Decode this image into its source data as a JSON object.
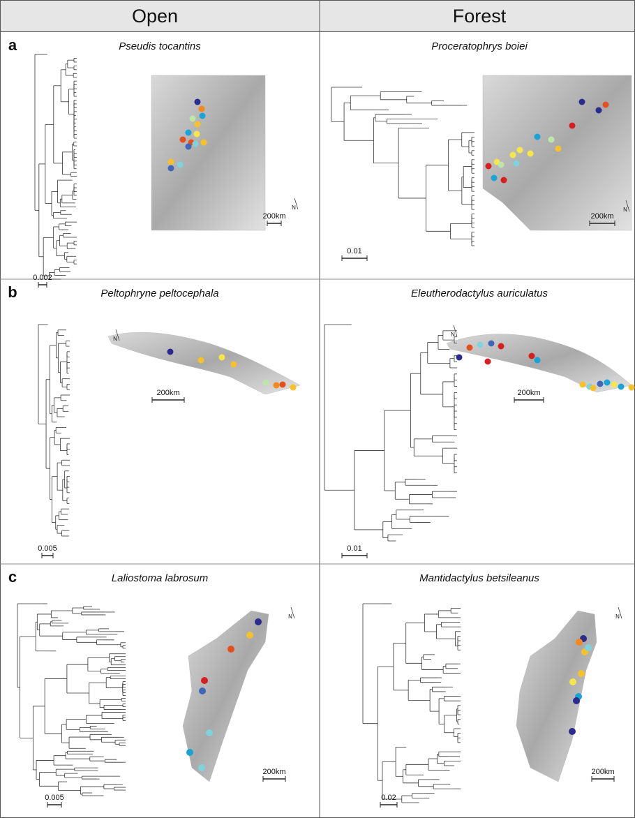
{
  "header": {
    "columns": [
      "Open",
      "Forest"
    ]
  },
  "rows": [
    {
      "label": "a",
      "panels": [
        {
          "species": "Pseudis tocantins",
          "tree_scale": "0.002",
          "map_scale": "200km",
          "north": "N"
        },
        {
          "species": "Proceratophrys boiei",
          "tree_scale": "0.01",
          "map_scale": "200km",
          "north": "N"
        }
      ]
    },
    {
      "label": "b",
      "panels": [
        {
          "species": "Peltophryne peltocephala",
          "tree_scale": "0.005",
          "map_scale": "200km",
          "north": "N"
        },
        {
          "species": "Eleutherodactylus auriculatus",
          "tree_scale": "0.01",
          "map_scale": "200km",
          "north": "N"
        }
      ]
    },
    {
      "label": "c",
      "panels": [
        {
          "species": "Laliostoma labrosum",
          "tree_scale": "0.005",
          "map_scale": "200km",
          "north": "N"
        },
        {
          "species": "Mantidactylus betsileanus",
          "tree_scale": "0.02",
          "map_scale": "200km",
          "north": "N"
        }
      ]
    }
  ]
}
